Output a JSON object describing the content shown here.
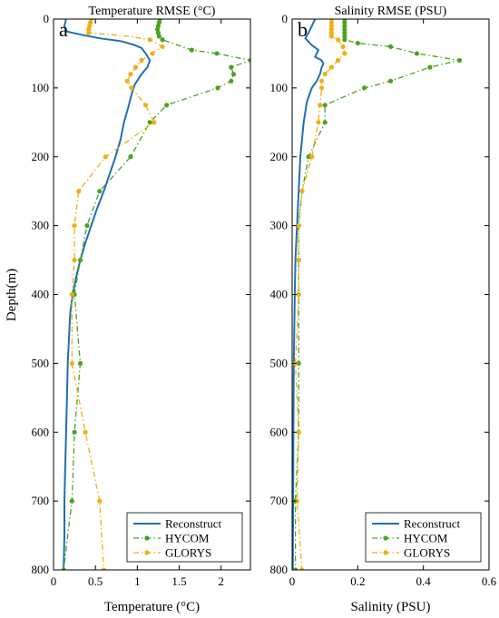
{
  "figure": {
    "ylabel": "Depth(m)"
  },
  "legend": {
    "items": [
      {
        "name": "Reconstruct",
        "color": "#1f6fb5",
        "style": "solid",
        "marker": "none"
      },
      {
        "name": "HYCOM",
        "color": "#4aa320",
        "style": "dash-dot",
        "marker": "circle"
      },
      {
        "name": "GLORYS",
        "color": "#f2ad13",
        "style": "dash-dot",
        "marker": "circle"
      }
    ]
  },
  "colors": {
    "reconstruct": "#1f6fb5",
    "hycom": "#4aa320",
    "glorys": "#f2ad13"
  },
  "chart_data": [
    {
      "type": "line",
      "panel_letter": "a",
      "title": "Temperature RMSE (°C)",
      "xlabel": "Temperature (°C)",
      "ylabel": "Depth(m)",
      "xlim": [
        0,
        2.35
      ],
      "ylim": [
        800,
        0
      ],
      "y_inverted": true,
      "xticks": [
        0,
        0.5,
        1,
        1.5,
        2
      ],
      "xtick_labels": [
        "0",
        "0.5",
        "1",
        "1.5",
        "2"
      ],
      "yticks": [
        0,
        100,
        200,
        300,
        400,
        500,
        600,
        700,
        800
      ],
      "ytick_labels": [
        "0",
        "100",
        "200",
        "300",
        "400",
        "500",
        "600",
        "700",
        "800"
      ],
      "grid": false,
      "legend_position": "bottom-right",
      "series": [
        {
          "name": "Reconstruct",
          "color_key": "reconstruct",
          "x": [
            0.15,
            0.13,
            0.16,
            0.3,
            0.55,
            0.8,
            0.95,
            1.05,
            1.1,
            1.15,
            1.12,
            1.05,
            0.97,
            0.93,
            0.9,
            0.84,
            0.8,
            0.74,
            0.67,
            0.6,
            0.52,
            0.45,
            0.38,
            0.32,
            0.27,
            0.23,
            0.2,
            0.19,
            0.17,
            0.16,
            0.15,
            0.14,
            0.13,
            0.13,
            0.12
          ],
          "y": [
            0,
            10,
            18,
            22,
            28,
            32,
            37,
            42,
            50,
            60,
            70,
            80,
            95,
            110,
            125,
            150,
            175,
            200,
            225,
            250,
            275,
            300,
            325,
            350,
            375,
            400,
            425,
            450,
            500,
            550,
            600,
            650,
            700,
            750,
            800
          ]
        },
        {
          "name": "HYCOM",
          "color_key": "hycom",
          "x": [
            1.27,
            1.26,
            1.25,
            1.24,
            1.25,
            1.26,
            1.3,
            1.65,
            1.95,
            2.35,
            2.12,
            2.15,
            2.12,
            1.96,
            1.35,
            1.15,
            0.92,
            0.55,
            0.4,
            0.32,
            0.25,
            0.32,
            0.25,
            0.22,
            0.12
          ],
          "y": [
            0,
            5,
            10,
            15,
            20,
            25,
            30,
            45,
            50,
            60,
            70,
            80,
            90,
            100,
            125,
            150,
            200,
            250,
            300,
            350,
            400,
            500,
            600,
            700,
            800
          ],
          "marker_y": [
            0,
            5,
            10,
            15,
            20,
            25,
            30,
            45,
            50,
            60,
            70,
            80,
            90,
            100,
            125,
            150,
            200,
            250,
            300,
            350,
            400,
            500,
            600,
            700,
            800
          ]
        },
        {
          "name": "GLORYS",
          "color_key": "glorys",
          "x": [
            0.45,
            0.44,
            0.43,
            0.42,
            0.42,
            0.9,
            1.15,
            1.3,
            1.18,
            1.05,
            0.98,
            0.92,
            0.88,
            0.93,
            1.1,
            1.2,
            0.62,
            0.3,
            0.25,
            0.25,
            0.22,
            0.22,
            0.38,
            0.55,
            0.6
          ],
          "y": [
            0,
            5,
            10,
            15,
            20,
            25,
            30,
            40,
            50,
            60,
            70,
            80,
            90,
            100,
            125,
            150,
            200,
            250,
            300,
            350,
            400,
            500,
            600,
            700,
            800
          ],
          "marker_y": [
            0,
            5,
            10,
            15,
            20,
            30,
            40,
            50,
            60,
            70,
            80,
            90,
            100,
            125,
            150,
            200,
            250,
            300,
            350,
            400,
            500,
            600,
            700,
            800
          ]
        }
      ]
    },
    {
      "type": "line",
      "panel_letter": "b",
      "title": "Salinity RMSE (PSU)",
      "xlabel": "Salinity (PSU)",
      "ylabel": "",
      "xlim": [
        0,
        0.6
      ],
      "ylim": [
        800,
        0
      ],
      "y_inverted": true,
      "xticks": [
        0,
        0.2,
        0.4,
        0.6
      ],
      "xtick_labels": [
        "0",
        "0.2",
        "0.4",
        "0.6"
      ],
      "yticks": [
        0,
        100,
        200,
        300,
        400,
        500,
        600,
        700,
        800
      ],
      "ytick_labels": [
        "0",
        "100",
        "200",
        "300",
        "400",
        "500",
        "600",
        "700",
        "800"
      ],
      "grid": false,
      "legend_position": "bottom-right",
      "series": [
        {
          "name": "Reconstruct",
          "color_key": "reconstruct",
          "x": [
            0.07,
            0.06,
            0.05,
            0.04,
            0.06,
            0.08,
            0.07,
            0.09,
            0.095,
            0.09,
            0.085,
            0.075,
            0.06,
            0.045,
            0.035,
            0.025,
            0.02,
            0.015,
            0.01,
            0.008,
            0.005,
            0.004,
            0.003,
            0.002
          ],
          "y": [
            0,
            10,
            20,
            28,
            38,
            45,
            55,
            60,
            65,
            70,
            80,
            90,
            100,
            120,
            150,
            200,
            250,
            300,
            350,
            400,
            500,
            600,
            700,
            800
          ]
        },
        {
          "name": "HYCOM",
          "color_key": "hycom",
          "x": [
            0.16,
            0.16,
            0.16,
            0.16,
            0.16,
            0.16,
            0.16,
            0.2,
            0.3,
            0.38,
            0.51,
            0.42,
            0.3,
            0.22,
            0.1,
            0.1,
            0.05,
            0.03,
            0.02,
            0.02,
            0.02,
            0.02,
            0.02,
            0.02,
            0.01,
            0.01
          ],
          "y": [
            0,
            5,
            10,
            15,
            20,
            25,
            30,
            35,
            40,
            50,
            60,
            70,
            90,
            100,
            125,
            150,
            200,
            250,
            300,
            350,
            400,
            500,
            550,
            600,
            700,
            800
          ],
          "marker_y": [
            0,
            5,
            10,
            15,
            20,
            25,
            30,
            35,
            40,
            50,
            60,
            70,
            90,
            100,
            125,
            150,
            200,
            250,
            300,
            350,
            400,
            500,
            600,
            700,
            800
          ]
        },
        {
          "name": "GLORYS",
          "color_key": "glorys",
          "x": [
            0.12,
            0.12,
            0.12,
            0.12,
            0.12,
            0.12,
            0.14,
            0.155,
            0.16,
            0.14,
            0.12,
            0.1,
            0.09,
            0.09,
            0.085,
            0.08,
            0.06,
            0.03,
            0.02,
            0.02,
            0.02,
            0.01,
            0.02,
            0.015,
            0.03
          ],
          "y": [
            0,
            5,
            10,
            15,
            20,
            25,
            30,
            40,
            50,
            60,
            70,
            80,
            90,
            100,
            125,
            150,
            200,
            250,
            300,
            350,
            400,
            500,
            600,
            700,
            800
          ],
          "marker_y": [
            0,
            5,
            10,
            15,
            20,
            25,
            30,
            40,
            50,
            60,
            70,
            80,
            90,
            100,
            125,
            150,
            200,
            250,
            300,
            350,
            400,
            500,
            600,
            700,
            800
          ]
        }
      ]
    }
  ]
}
